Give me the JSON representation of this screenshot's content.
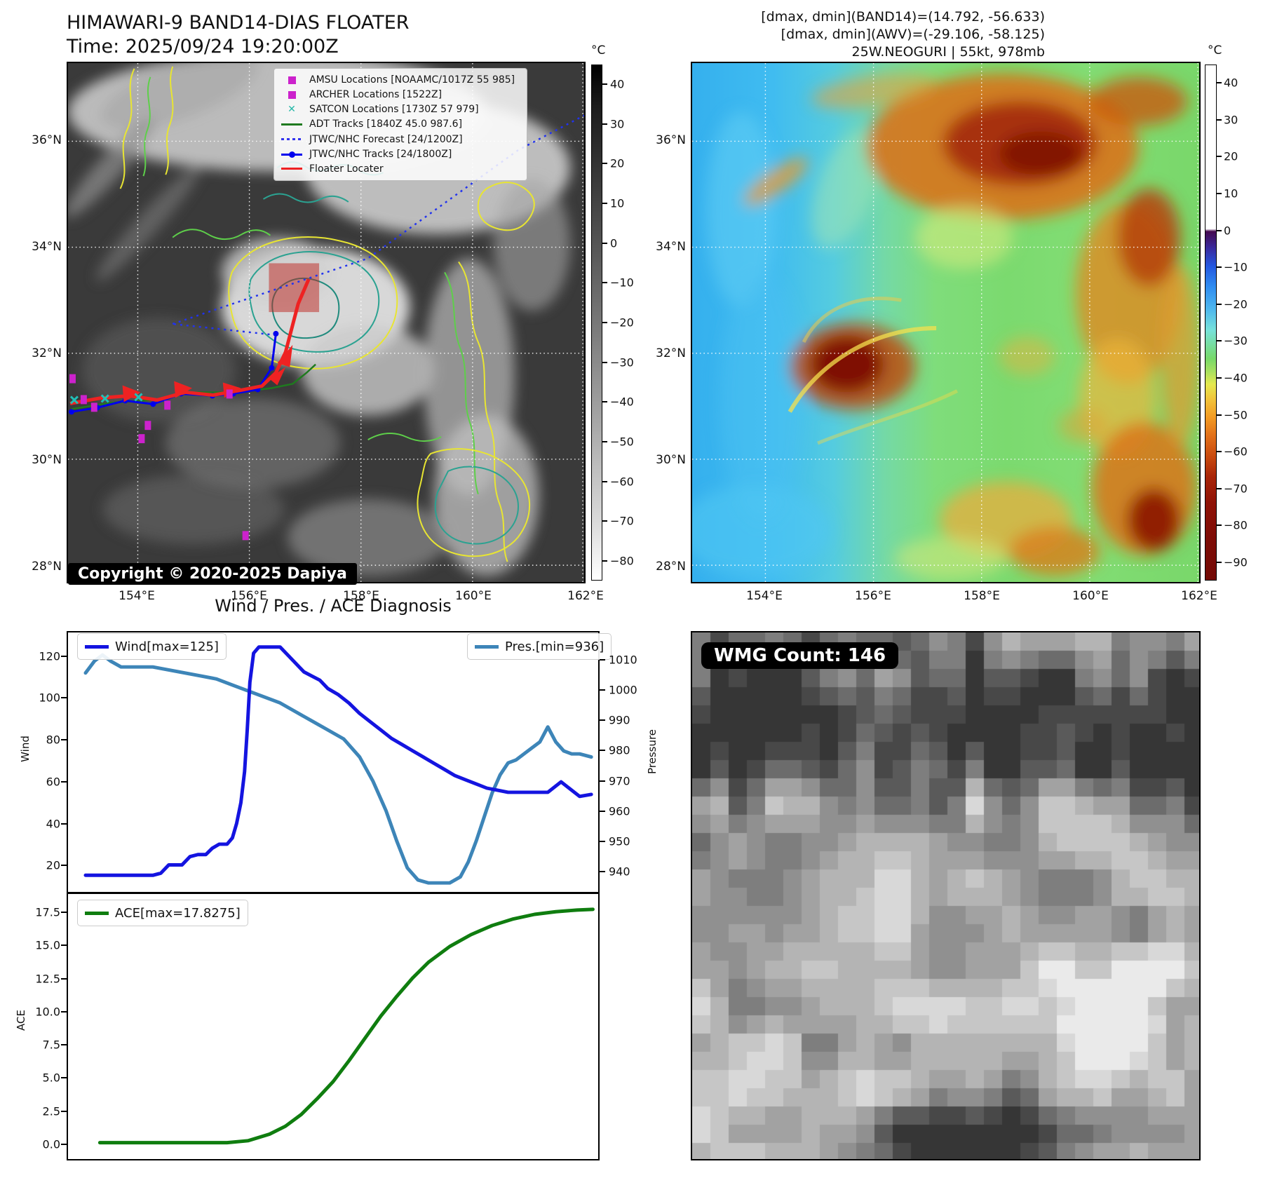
{
  "header": {
    "title_line1": "HIMAWARI-9 BAND14-DIAS FLOATER",
    "title_line2": "Time: 2025/09/24 19:20:00Z",
    "info_line1": "[dmax, dmin](BAND14)=(14.792, -56.633)",
    "info_line2": "[dmax, dmin](AWV)=(-29.106, -58.125)",
    "info_line3": "25W.NEOGURI | 55kt, 978mb"
  },
  "map_left": {
    "legend_items": [
      {
        "label": "AMSU Locations [NOAAMC/1017Z 55 985]",
        "marker": "square",
        "color": "#cc22cc"
      },
      {
        "label": "ARCHER Locations [1522Z]",
        "marker": "square",
        "color": "#cc22cc"
      },
      {
        "label": "SATCON Locations [1730Z 57 979]",
        "marker": "x",
        "color": "#26b8a8"
      },
      {
        "label": "ADT Tracks [1840Z 45.0 987.6]",
        "marker": "line",
        "color": "#1f7a1f"
      },
      {
        "label": "JTWC/NHC Forecast [24/1200Z]",
        "marker": "dotted",
        "color": "#3333ee"
      },
      {
        "label": "JTWC/NHC Tracks [24/1800Z]",
        "marker": "linedot",
        "color": "#0000ee"
      },
      {
        "label": "Floater Locater",
        "marker": "line",
        "color": "#ee2222"
      }
    ],
    "copyright": "Copyright © 2020-2025 Dapiya",
    "x_ticks": [
      "154°E",
      "156°E",
      "158°E",
      "160°E",
      "162°E"
    ],
    "y_ticks": [
      "36°N",
      "34°N",
      "32°N",
      "30°N",
      "28°N"
    ],
    "colorbar_unit": "°C",
    "colorbar_ticks": [
      "40",
      "30",
      "20",
      "10",
      "0",
      "−10",
      "−20",
      "−30",
      "−40",
      "−50",
      "−60",
      "−70",
      "−80"
    ]
  },
  "map_right": {
    "x_ticks": [
      "154°E",
      "156°E",
      "158°E",
      "160°E",
      "162°E"
    ],
    "y_ticks": [
      "36°N",
      "34°N",
      "32°N",
      "30°N",
      "28°N"
    ],
    "colorbar_unit": "°C",
    "colorbar_ticks": [
      "40",
      "30",
      "20",
      "10",
      "0",
      "−10",
      "−20",
      "−30",
      "−40",
      "−50",
      "−60",
      "−70",
      "−80",
      "−90"
    ]
  },
  "diagnosis": {
    "title": "Wind / Pres. / ACE Diagnosis",
    "wind_ylabel": "Wind",
    "pres_ylabel": "Pressure",
    "ace_ylabel": "ACE",
    "wind_yticks": [
      "120",
      "100",
      "80",
      "60",
      "40",
      "20"
    ],
    "pres_yticks": [
      "1010",
      "1000",
      "990",
      "980",
      "970",
      "960",
      "950",
      "940"
    ],
    "ace_yticks": [
      "17.5",
      "15.0",
      "12.5",
      "10.0",
      "7.5",
      "5.0",
      "2.5",
      "0.0"
    ]
  },
  "wmg": {
    "label": "WMG Count: 146"
  },
  "chart_data": {
    "type": "line",
    "title": "Wind / Pres. / ACE Diagnosis",
    "xlabel": "",
    "grid": false,
    "panels": [
      {
        "name": "wind_pressure",
        "wind_ylim": [
          7,
          132
        ],
        "pressure_ylim": [
          933,
          1019.5
        ],
        "series": [
          {
            "name": "Wind[max=125]",
            "yaxis": "wind",
            "color": "#1414e0",
            "width": 5,
            "max": 125,
            "points": [
              [
                0.033,
                15
              ],
              [
                0.07,
                15
              ],
              [
                0.1,
                15
              ],
              [
                0.13,
                15
              ],
              [
                0.16,
                15
              ],
              [
                0.175,
                16
              ],
              [
                0.19,
                20
              ],
              [
                0.205,
                20
              ],
              [
                0.215,
                20
              ],
              [
                0.23,
                24
              ],
              [
                0.245,
                25
              ],
              [
                0.26,
                25
              ],
              [
                0.272,
                28
              ],
              [
                0.285,
                30
              ],
              [
                0.3,
                30
              ],
              [
                0.31,
                33
              ],
              [
                0.318,
                40
              ],
              [
                0.326,
                50
              ],
              [
                0.333,
                65
              ],
              [
                0.338,
                85
              ],
              [
                0.343,
                108
              ],
              [
                0.35,
                122
              ],
              [
                0.36,
                125
              ],
              [
                0.375,
                125
              ],
              [
                0.4,
                125
              ],
              [
                0.415,
                121
              ],
              [
                0.43,
                117
              ],
              [
                0.445,
                113
              ],
              [
                0.46,
                111
              ],
              [
                0.475,
                109
              ],
              [
                0.49,
                105
              ],
              [
                0.51,
                102
              ],
              [
                0.53,
                98
              ],
              [
                0.55,
                93
              ],
              [
                0.57,
                89
              ],
              [
                0.59,
                85
              ],
              [
                0.61,
                81
              ],
              [
                0.63,
                78
              ],
              [
                0.65,
                75
              ],
              [
                0.67,
                72
              ],
              [
                0.69,
                69
              ],
              [
                0.71,
                66
              ],
              [
                0.73,
                63
              ],
              [
                0.75,
                61
              ],
              [
                0.77,
                59
              ],
              [
                0.79,
                57
              ],
              [
                0.81,
                56
              ],
              [
                0.83,
                55
              ],
              [
                0.855,
                55
              ],
              [
                0.88,
                55
              ],
              [
                0.905,
                55
              ],
              [
                0.93,
                60
              ],
              [
                0.95,
                56
              ],
              [
                0.965,
                53
              ],
              [
                0.987,
                54
              ]
            ]
          },
          {
            "name": "Pres.[min=936]",
            "yaxis": "pressure",
            "color": "#3d85b8",
            "width": 5,
            "min": 936,
            "points": [
              [
                0.033,
                1006
              ],
              [
                0.05,
                1010
              ],
              [
                0.065,
                1012
              ],
              [
                0.08,
                1010
              ],
              [
                0.1,
                1008
              ],
              [
                0.13,
                1008
              ],
              [
                0.16,
                1008
              ],
              [
                0.19,
                1007
              ],
              [
                0.22,
                1006
              ],
              [
                0.25,
                1005
              ],
              [
                0.28,
                1004
              ],
              [
                0.31,
                1002
              ],
              [
                0.34,
                1000
              ],
              [
                0.37,
                998
              ],
              [
                0.4,
                996
              ],
              [
                0.43,
                993
              ],
              [
                0.46,
                990
              ],
              [
                0.49,
                987
              ],
              [
                0.52,
                984
              ],
              [
                0.55,
                978
              ],
              [
                0.575,
                970
              ],
              [
                0.6,
                960
              ],
              [
                0.62,
                950
              ],
              [
                0.64,
                941
              ],
              [
                0.66,
                937
              ],
              [
                0.68,
                936
              ],
              [
                0.7,
                936
              ],
              [
                0.72,
                936
              ],
              [
                0.74,
                938
              ],
              [
                0.755,
                943
              ],
              [
                0.77,
                950
              ],
              [
                0.785,
                958
              ],
              [
                0.8,
                966
              ],
              [
                0.815,
                972
              ],
              [
                0.83,
                976
              ],
              [
                0.845,
                977
              ],
              [
                0.86,
                979
              ],
              [
                0.875,
                981
              ],
              [
                0.89,
                983
              ],
              [
                0.905,
                988
              ],
              [
                0.92,
                983
              ],
              [
                0.935,
                980
              ],
              [
                0.95,
                979
              ],
              [
                0.965,
                979
              ],
              [
                0.987,
                978
              ]
            ]
          }
        ]
      },
      {
        "name": "ace",
        "ace_ylim": [
          -1.2,
          19.0
        ],
        "series": [
          {
            "name": "ACE[max=17.8275]",
            "yaxis": "ace",
            "color": "#0f7d0f",
            "width": 5,
            "max": 17.8275,
            "points": [
              [
                0.06,
                0.05
              ],
              [
                0.12,
                0.05
              ],
              [
                0.18,
                0.05
              ],
              [
                0.24,
                0.05
              ],
              [
                0.3,
                0.05
              ],
              [
                0.34,
                0.2
              ],
              [
                0.38,
                0.7
              ],
              [
                0.41,
                1.3
              ],
              [
                0.44,
                2.2
              ],
              [
                0.47,
                3.4
              ],
              [
                0.5,
                4.7
              ],
              [
                0.53,
                6.3
              ],
              [
                0.56,
                8.0
              ],
              [
                0.59,
                9.7
              ],
              [
                0.62,
                11.2
              ],
              [
                0.65,
                12.6
              ],
              [
                0.68,
                13.8
              ],
              [
                0.72,
                15.0
              ],
              [
                0.76,
                15.9
              ],
              [
                0.8,
                16.6
              ],
              [
                0.84,
                17.1
              ],
              [
                0.88,
                17.45
              ],
              [
                0.92,
                17.65
              ],
              [
                0.96,
                17.78
              ],
              [
                0.99,
                17.83
              ]
            ]
          }
        ]
      }
    ]
  }
}
